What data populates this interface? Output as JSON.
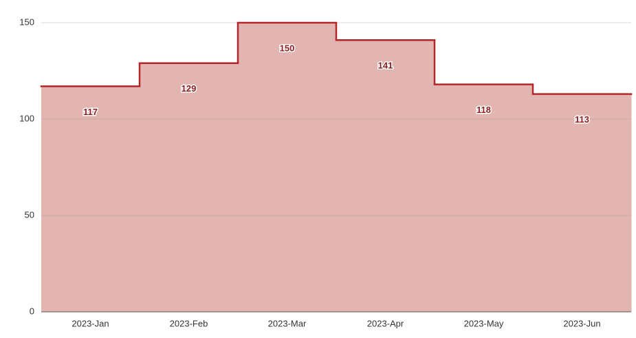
{
  "chart_data": {
    "type": "step_area",
    "categories": [
      "2023-Jan",
      "2023-Feb",
      "2023-Mar",
      "2023-Apr",
      "2023-May",
      "2023-Jun"
    ],
    "values": [
      117,
      129,
      150,
      141,
      118,
      113
    ],
    "color": "#b3262a",
    "fill": "#e3b5b0",
    "ylim": [
      0,
      150
    ],
    "yticks": [
      0,
      50,
      100,
      150
    ],
    "grid": true
  }
}
